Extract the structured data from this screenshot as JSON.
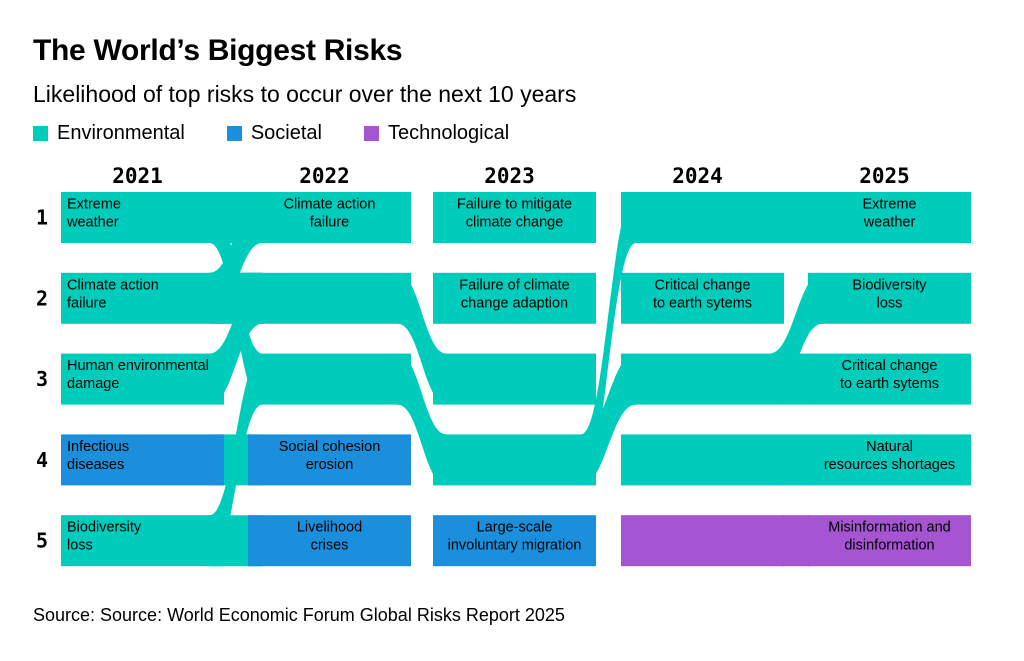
{
  "title": "The World’s Biggest Risks",
  "subtitle": "Likelihood of top risks to occur over the next 10 years",
  "source": "Source: Source: World Economic Forum Global Risks Report 2025",
  "colors": {
    "Environmental": "#00ccbb",
    "Societal": "#1b8fdc",
    "Technological": "#a555d2"
  },
  "chart_data": {
    "type": "bump",
    "categories": [
      "2021",
      "2022",
      "2023",
      "2024",
      "2025"
    ],
    "ranks": [
      "1",
      "2",
      "3",
      "4",
      "5"
    ],
    "legend": [
      {
        "name": "Environmental",
        "color": "#00ccbb"
      },
      {
        "name": "Societal",
        "color": "#1b8fdc"
      },
      {
        "name": "Technological",
        "color": "#a555d2"
      }
    ],
    "cells": [
      [
        {
          "label": [
            "Extreme",
            "weather"
          ],
          "category": "Environmental"
        },
        {
          "label": [
            "Climate action",
            "failure"
          ],
          "category": "Environmental"
        },
        {
          "label": [
            "Human environmental",
            "damage"
          ],
          "category": "Environmental"
        },
        {
          "label": [
            "Infectious",
            "diseases"
          ],
          "category": "Societal"
        },
        {
          "label": [
            "Biodiversity",
            "loss"
          ],
          "category": "Environmental"
        }
      ],
      [
        {
          "label": [
            "Climate action",
            "failure"
          ],
          "category": "Environmental"
        },
        {
          "label": [],
          "category": "Environmental"
        },
        {
          "label": [],
          "category": "Environmental"
        },
        {
          "label": [
            "Social cohesion",
            "erosion"
          ],
          "category": "Societal"
        },
        {
          "label": [
            "Livelihood",
            "crises"
          ],
          "category": "Societal"
        }
      ],
      [
        {
          "label": [
            "Failure to mitigate",
            "climate change"
          ],
          "category": "Environmental"
        },
        {
          "label": [
            "Failure of climate",
            "change adaption"
          ],
          "category": "Environmental"
        },
        {
          "label": [],
          "category": "Environmental"
        },
        {
          "label": [],
          "category": "Environmental"
        },
        {
          "label": [
            "Large-scale",
            "involuntary migration"
          ],
          "category": "Societal"
        }
      ],
      [
        {
          "label": [],
          "category": "Environmental"
        },
        {
          "label": [
            "Critical change",
            "to earth sytems"
          ],
          "category": "Environmental"
        },
        {
          "label": [],
          "category": "Environmental"
        },
        {
          "label": [],
          "category": "Environmental"
        },
        {
          "label": [],
          "category": "Technological"
        }
      ],
      [
        {
          "label": [
            "Extreme",
            "weather"
          ],
          "category": "Environmental"
        },
        {
          "label": [
            "Biodiversity",
            "loss"
          ],
          "category": "Environmental"
        },
        {
          "label": [
            "Critical change",
            "to earth sytems"
          ],
          "category": "Environmental"
        },
        {
          "label": [
            "Natural",
            "resources shortages"
          ],
          "category": "Environmental"
        },
        {
          "label": [
            "Misinformation and",
            "disinformation"
          ],
          "category": "Technological"
        }
      ]
    ],
    "flows": [
      {
        "id": "extreme-weather",
        "ranks": [
          1,
          3,
          4,
          1,
          1
        ]
      },
      {
        "id": "climate-action-failure",
        "ranks": [
          2,
          1
        ]
      },
      {
        "id": "human-environmental-damage",
        "ranks": [
          3,
          2
        ]
      },
      {
        "id": "biodiversity-loss",
        "ranks": [
          5,
          3,
          4,
          3,
          2
        ]
      },
      {
        "id": "failure-to-mitigate",
        "ranks": [
          1,
          1
        ]
      },
      {
        "id": "failure-of-adaption",
        "ranks": [
          2,
          2
        ]
      },
      {
        "id": "critical-change-earth-systems",
        "ranks": [
          2,
          2,
          3
        ]
      },
      {
        "id": "natural-resources",
        "ranks": [
          4,
          4
        ]
      },
      {
        "id": "misinformation",
        "ranks": [
          5,
          5
        ]
      }
    ]
  }
}
